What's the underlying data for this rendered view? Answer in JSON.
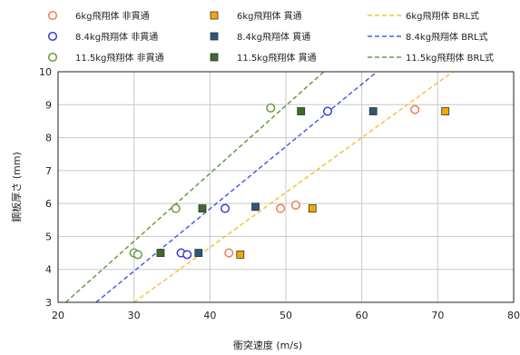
{
  "chart_data": {
    "type": "scatter",
    "title": "",
    "xlabel": "衝突速度 (m/s)",
    "ylabel": "鋼板厚さ (mm)",
    "xlim": [
      20,
      80
    ],
    "ylim": [
      3,
      10
    ],
    "xticks": [
      20,
      30,
      40,
      50,
      60,
      70,
      80
    ],
    "yticks": [
      3,
      4,
      5,
      6,
      7,
      8,
      9,
      10
    ],
    "grid": true,
    "legend_position": "top",
    "series": [
      {
        "name": "6kg飛翔体 非貫通",
        "marker": "circle",
        "color": "#f47c4e",
        "points": [
          [
            42.5,
            4.5
          ],
          [
            49.3,
            5.85
          ],
          [
            51.3,
            5.95
          ],
          [
            67,
            8.85
          ]
        ]
      },
      {
        "name": "8.4kg飛翔体 非貫通",
        "marker": "circle",
        "color": "#3b3bd8",
        "points": [
          [
            36.2,
            4.5
          ],
          [
            37,
            4.45
          ],
          [
            42,
            5.85
          ],
          [
            55.5,
            8.8
          ]
        ]
      },
      {
        "name": "11.5kg飛翔体 非貫通",
        "marker": "circle",
        "color": "#6a9a40",
        "points": [
          [
            30,
            4.5
          ],
          [
            30.5,
            4.45
          ],
          [
            35.5,
            5.85
          ],
          [
            48,
            8.9
          ]
        ]
      },
      {
        "name": "6kg飛翔体 貫通",
        "marker": "square",
        "color": "#f5a800",
        "points": [
          [
            44,
            4.45
          ],
          [
            53.5,
            5.85
          ],
          [
            71,
            8.8
          ]
        ]
      },
      {
        "name": "8.4kg飛翔体 貫通",
        "marker": "square",
        "color": "#2c5878",
        "points": [
          [
            38.5,
            4.5
          ],
          [
            46,
            5.9
          ],
          [
            61.5,
            8.8
          ]
        ]
      },
      {
        "name": "11.5kg飛翔体 貫通",
        "marker": "square",
        "color": "#3d6b2a",
        "points": [
          [
            33.5,
            4.5
          ],
          [
            39,
            5.85
          ],
          [
            52,
            8.8
          ]
        ]
      },
      {
        "name": "6kg飛翔体 BRL式",
        "marker": "dashed-line",
        "color": "#f5c242",
        "points": [
          [
            30,
            3
          ],
          [
            72,
            10
          ]
        ]
      },
      {
        "name": "8.4kg飛翔体 BRL式",
        "marker": "dashed-line",
        "color": "#4a5ee8",
        "points": [
          [
            25,
            3
          ],
          [
            62,
            10
          ]
        ]
      },
      {
        "name": "11.5kg飛翔体 BRL式",
        "marker": "dashed-line",
        "color": "#6a9a40",
        "points": [
          [
            21,
            3
          ],
          [
            55,
            10
          ]
        ]
      }
    ]
  }
}
